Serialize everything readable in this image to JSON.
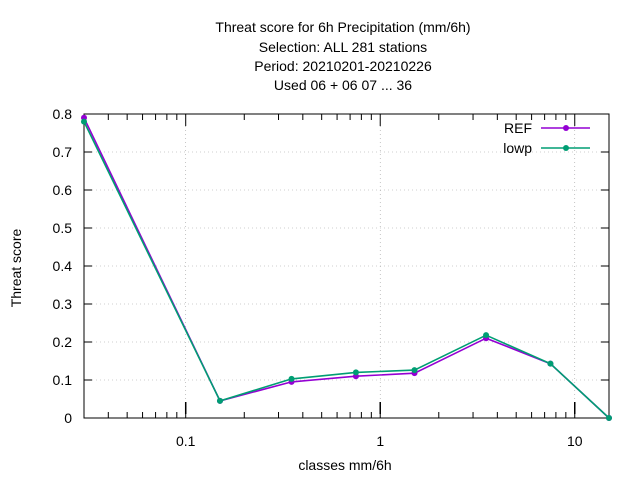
{
  "chart_data": {
    "type": "line",
    "title_lines": [
      "Threat score  for 6h Precipitation (mm/6h)",
      "Selection: ALL    281 stations",
      "Period: 20210201-20210226",
      "Used  06  + 06 07 ... 36"
    ],
    "xlabel": "classes mm/6h",
    "ylabel": "Threat score",
    "x_scale": "log",
    "xlim": [
      0.03,
      15
    ],
    "ylim": [
      0,
      0.8
    ],
    "x_ticks": [
      {
        "value": 0.1,
        "label": "0.1"
      },
      {
        "value": 1,
        "label": "1"
      },
      {
        "value": 10,
        "label": "10"
      }
    ],
    "y_ticks": [
      {
        "value": 0,
        "label": "0"
      },
      {
        "value": 0.1,
        "label": "0.1"
      },
      {
        "value": 0.2,
        "label": "0.2"
      },
      {
        "value": 0.3,
        "label": "0.3"
      },
      {
        "value": 0.4,
        "label": "0.4"
      },
      {
        "value": 0.5,
        "label": "0.5"
      },
      {
        "value": 0.6,
        "label": "0.6"
      },
      {
        "value": 0.7,
        "label": "0.7"
      },
      {
        "value": 0.8,
        "label": "0.8"
      }
    ],
    "grid": true,
    "legend_position": "top-right",
    "series": [
      {
        "name": "REF",
        "color": "#9400d3",
        "x": [
          0.03,
          0.15,
          0.35,
          0.75,
          1.5,
          3.5,
          7.5,
          15
        ],
        "y": [
          0.79,
          0.045,
          0.095,
          0.11,
          0.118,
          0.21,
          0.143,
          0.0
        ]
      },
      {
        "name": "lowp",
        "color": "#009e73",
        "x": [
          0.03,
          0.15,
          0.35,
          0.75,
          1.5,
          3.5,
          7.5,
          15
        ],
        "y": [
          0.78,
          0.045,
          0.103,
          0.12,
          0.126,
          0.218,
          0.143,
          0.0
        ]
      }
    ]
  }
}
